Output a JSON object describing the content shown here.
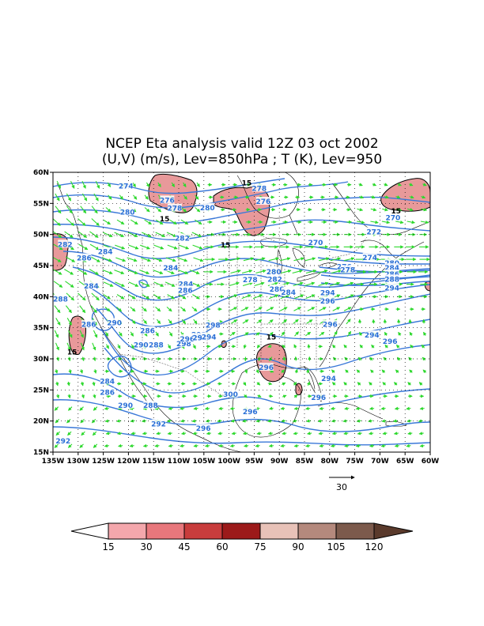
{
  "title": {
    "line1": "NCEP Eta analysis valid 12Z 03 oct 2002",
    "line2": "(U,V) (m/s), Lev=850hPa ; T (K), Lev=950"
  },
  "map": {
    "lon_range": [
      -135,
      -60
    ],
    "lat_range": [
      15,
      60
    ],
    "x_ticks": [
      "135W",
      "130W",
      "125W",
      "120W",
      "115W",
      "110W",
      "105W",
      "100W",
      "95W",
      "90W",
      "85W",
      "80W",
      "75W",
      "70W",
      "65W",
      "60W"
    ],
    "y_ticks": [
      "15N",
      "20N",
      "25N",
      "30N",
      "35N",
      "40N",
      "45N",
      "50N",
      "55N",
      "60N"
    ],
    "contour_color": "#3a78d8",
    "vector_color": "#2cd82c",
    "wind_fill_color": "#e8999a"
  },
  "temperature_labels": [
    {
      "text": "274",
      "lon": -120.5,
      "lat": 57.8
    },
    {
      "text": "276",
      "lon": -112.3,
      "lat": 55.5
    },
    {
      "text": "278",
      "lon": -110.8,
      "lat": 54.2
    },
    {
      "text": "280",
      "lon": -120.2,
      "lat": 53.6
    },
    {
      "text": "280",
      "lon": -104.3,
      "lat": 54.3
    },
    {
      "text": "278",
      "lon": -94.0,
      "lat": 57.4
    },
    {
      "text": "276",
      "lon": -93.2,
      "lat": 55.3
    },
    {
      "text": "15",
      "lon": -96.5,
      "lat": 58.3
    },
    {
      "text": "15",
      "lon": -112.8,
      "lat": 52.5
    },
    {
      "text": "282",
      "lon": -109.3,
      "lat": 49.4
    },
    {
      "text": "282",
      "lon": -132.6,
      "lat": 48.4
    },
    {
      "text": "284",
      "lon": -124.6,
      "lat": 47.2
    },
    {
      "text": "286",
      "lon": -128.8,
      "lat": 46.2
    },
    {
      "text": "284",
      "lon": -111.6,
      "lat": 44.6
    },
    {
      "text": "284",
      "lon": -127.4,
      "lat": 41.7
    },
    {
      "text": "288",
      "lon": -133.5,
      "lat": 39.6
    },
    {
      "text": "284",
      "lon": -108.6,
      "lat": 42.0
    },
    {
      "text": "286",
      "lon": -108.7,
      "lat": 41.0
    },
    {
      "text": "15",
      "lon": -100.7,
      "lat": 48.3
    },
    {
      "text": "270",
      "lon": -82.8,
      "lat": 48.7
    },
    {
      "text": "280",
      "lon": -91.1,
      "lat": 44.0
    },
    {
      "text": "278",
      "lon": -95.8,
      "lat": 42.7
    },
    {
      "text": "282",
      "lon": -90.9,
      "lat": 42.8
    },
    {
      "text": "286",
      "lon": -90.5,
      "lat": 41.2
    },
    {
      "text": "284",
      "lon": -88.2,
      "lat": 40.7
    },
    {
      "text": "294",
      "lon": -80.4,
      "lat": 40.6
    },
    {
      "text": "296",
      "lon": -80.4,
      "lat": 39.3
    },
    {
      "text": "276",
      "lon": -77.1,
      "lat": 44.8
    },
    {
      "text": "278",
      "lon": -76.4,
      "lat": 44.3
    },
    {
      "text": "274",
      "lon": -72.0,
      "lat": 46.3
    },
    {
      "text": "280",
      "lon": -67.6,
      "lat": 45.4
    },
    {
      "text": "284",
      "lon": -67.6,
      "lat": 44.6
    },
    {
      "text": "286",
      "lon": -67.6,
      "lat": 43.6
    },
    {
      "text": "288",
      "lon": -67.6,
      "lat": 42.8
    },
    {
      "text": "294",
      "lon": -67.6,
      "lat": 41.4
    },
    {
      "text": "272",
      "lon": -71.2,
      "lat": 50.4
    },
    {
      "text": "270",
      "lon": -67.4,
      "lat": 52.7
    },
    {
      "text": "15",
      "lon": -66.8,
      "lat": 53.8
    },
    {
      "text": "290",
      "lon": -122.8,
      "lat": 35.8
    },
    {
      "text": "286",
      "lon": -127.9,
      "lat": 35.5
    },
    {
      "text": "286",
      "lon": -116.2,
      "lat": 34.5
    },
    {
      "text": "15",
      "lon": -131.2,
      "lat": 31.1
    },
    {
      "text": "290",
      "lon": -117.5,
      "lat": 32.2
    },
    {
      "text": "288",
      "lon": -114.5,
      "lat": 32.2
    },
    {
      "text": "298",
      "lon": -109.0,
      "lat": 32.4
    },
    {
      "text": "296",
      "lon": -108.3,
      "lat": 33.2
    },
    {
      "text": "292",
      "lon": -106.0,
      "lat": 33.9
    },
    {
      "text": "294",
      "lon": -105.8,
      "lat": 33.4
    },
    {
      "text": "294",
      "lon": -104.0,
      "lat": 33.5
    },
    {
      "text": "298",
      "lon": -103.2,
      "lat": 35.4
    },
    {
      "text": "296",
      "lon": -79.9,
      "lat": 35.5
    },
    {
      "text": "15",
      "lon": -91.6,
      "lat": 33.5
    },
    {
      "text": "294",
      "lon": -71.6,
      "lat": 33.8
    },
    {
      "text": "296",
      "lon": -68.0,
      "lat": 32.8
    },
    {
      "text": "296",
      "lon": -92.6,
      "lat": 28.6
    },
    {
      "text": "284",
      "lon": -124.2,
      "lat": 26.4
    },
    {
      "text": "286",
      "lon": -124.2,
      "lat": 24.6
    },
    {
      "text": "290",
      "lon": -120.6,
      "lat": 22.5
    },
    {
      "text": "288",
      "lon": -115.6,
      "lat": 22.5
    },
    {
      "text": "300",
      "lon": -99.7,
      "lat": 24.3
    },
    {
      "text": "296",
      "lon": -95.8,
      "lat": 21.5
    },
    {
      "text": "294",
      "lon": -80.2,
      "lat": 26.8
    },
    {
      "text": "296",
      "lon": -82.2,
      "lat": 23.8
    },
    {
      "text": "292",
      "lon": -114.0,
      "lat": 19.5
    },
    {
      "text": "296",
      "lon": -105.1,
      "lat": 18.8
    },
    {
      "text": "292",
      "lon": -133.0,
      "lat": 16.8
    }
  ],
  "reference_vector": {
    "label": "30"
  },
  "colorbar": {
    "ticks": [
      "15",
      "30",
      "45",
      "60",
      "75",
      "90",
      "105",
      "120"
    ],
    "colors": [
      "#f4a7ac",
      "#e8777c",
      "#c83c3c",
      "#9c1a1a",
      "#e8c2b8",
      "#b4897d",
      "#7c5a4c",
      "#5a3a2c"
    ]
  }
}
